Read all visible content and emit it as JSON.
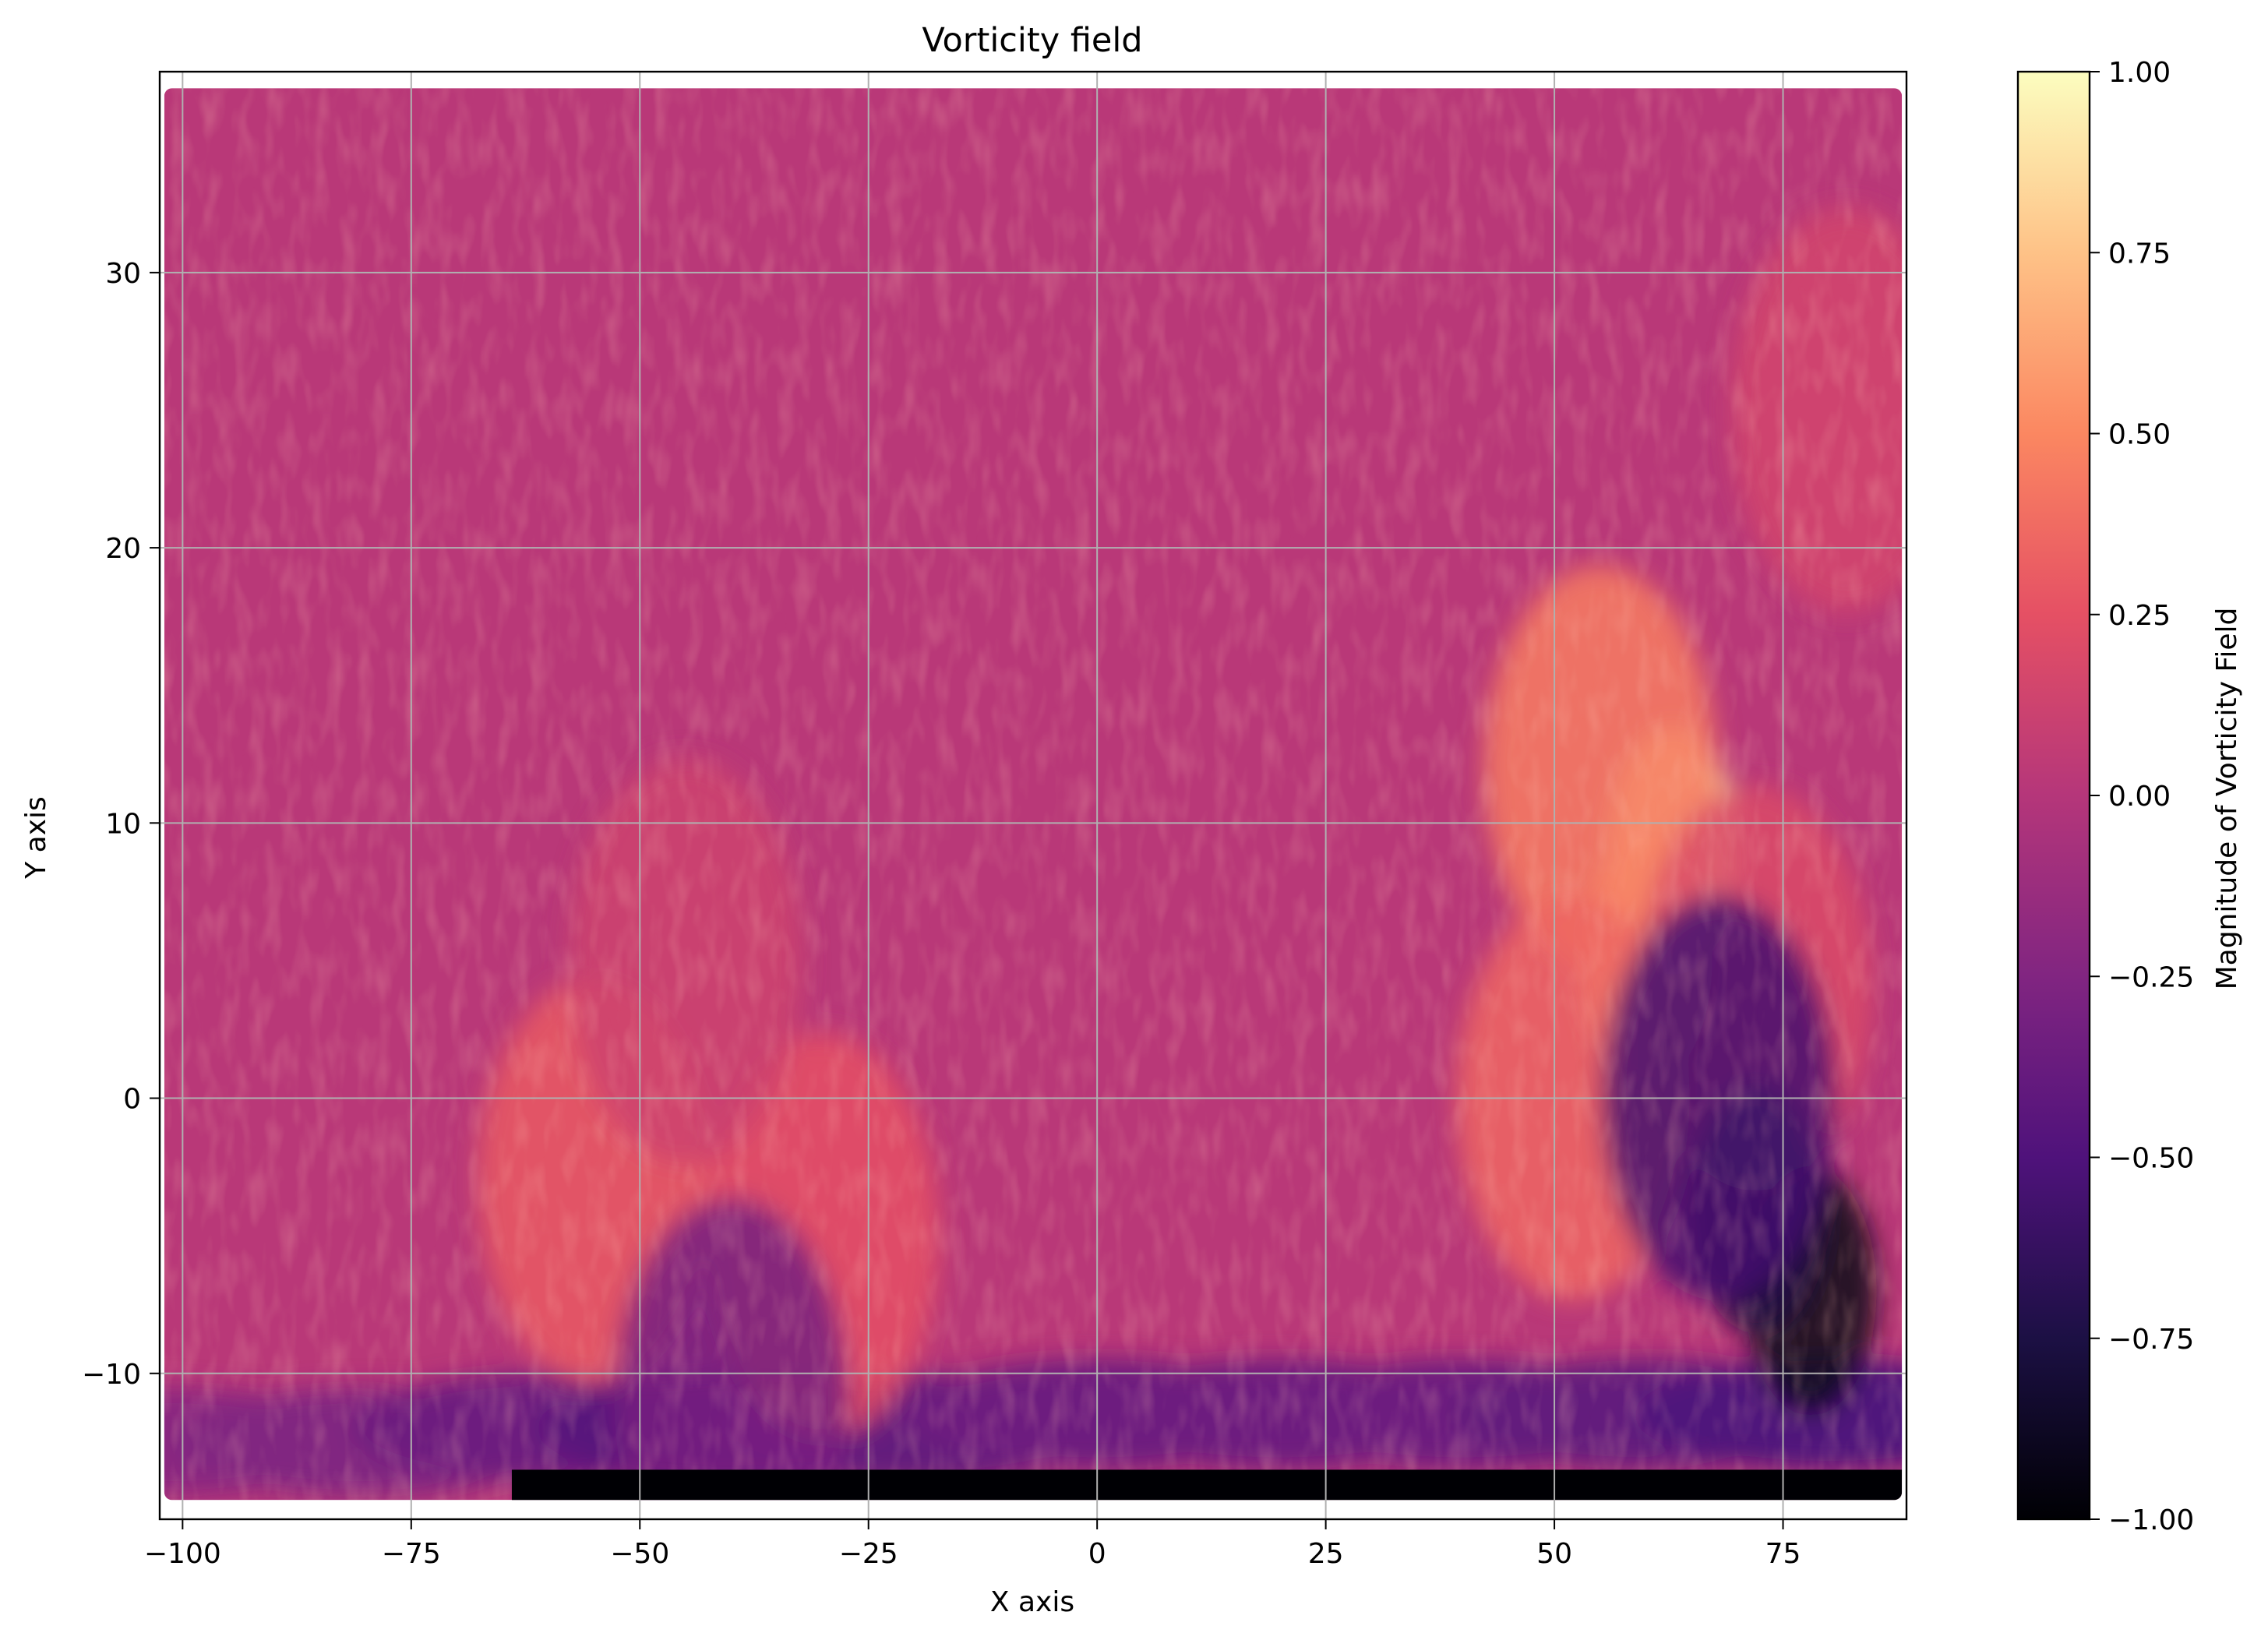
{
  "chart_data": {
    "type": "heatmap",
    "title": "Vorticity field",
    "xlabel": "X axis",
    "ylabel": "Y axis",
    "xlim": [
      -102.5,
      88.5
    ],
    "ylim": [
      -15.3,
      37.3
    ],
    "x_ticks": [
      -100,
      -75,
      -50,
      -25,
      0,
      25,
      50,
      75
    ],
    "x_tick_labels": [
      "−100",
      "−75",
      "−50",
      "−25",
      "0",
      "25",
      "50",
      "75"
    ],
    "y_ticks": [
      -10,
      0,
      10,
      20,
      30
    ],
    "y_tick_labels": [
      "−10",
      "0",
      "10",
      "20",
      "30"
    ],
    "grid": true,
    "data_extent": {
      "x": [
        -102,
        88
      ],
      "y": [
        -14.6,
        36.7
      ]
    },
    "colormap": "magma",
    "colorbar": {
      "label": "Magnitude of Vorticity Field",
      "vmin": -1.0,
      "vmax": 1.0,
      "ticks": [
        -1.0,
        -0.75,
        -0.5,
        -0.25,
        0.0,
        0.25,
        0.5,
        0.75,
        1.0
      ],
      "tick_labels": [
        "−1.00",
        "−0.75",
        "−0.50",
        "−0.25",
        "0.00",
        "0.25",
        "0.50",
        "0.75",
        "1.00"
      ]
    },
    "features": [
      {
        "x": 63,
        "y": 9,
        "value": 0.85
      },
      {
        "x": 60,
        "y": 5,
        "value": 0.7
      },
      {
        "x": 55,
        "y": 12,
        "value": 0.45
      },
      {
        "x": 52,
        "y": 0,
        "value": 0.35
      },
      {
        "x": 72,
        "y": 4,
        "value": 0.2
      },
      {
        "x": 78,
        "y": -7,
        "value": -0.9
      },
      {
        "x": 72,
        "y": -4,
        "value": -0.75
      },
      {
        "x": 68,
        "y": 0,
        "value": -0.55
      },
      {
        "x": -55,
        "y": -3,
        "value": 0.3
      },
      {
        "x": -30,
        "y": -5,
        "value": 0.25
      },
      {
        "x": -45,
        "y": 5,
        "value": 0.12
      },
      {
        "x": -40,
        "y": -11,
        "value": -0.3
      },
      {
        "x": 82,
        "y": 25,
        "value": 0.15
      }
    ]
  },
  "colors": {
    "background": "#ffffff",
    "grid": "#b0b0b0",
    "axis": "#000000"
  }
}
